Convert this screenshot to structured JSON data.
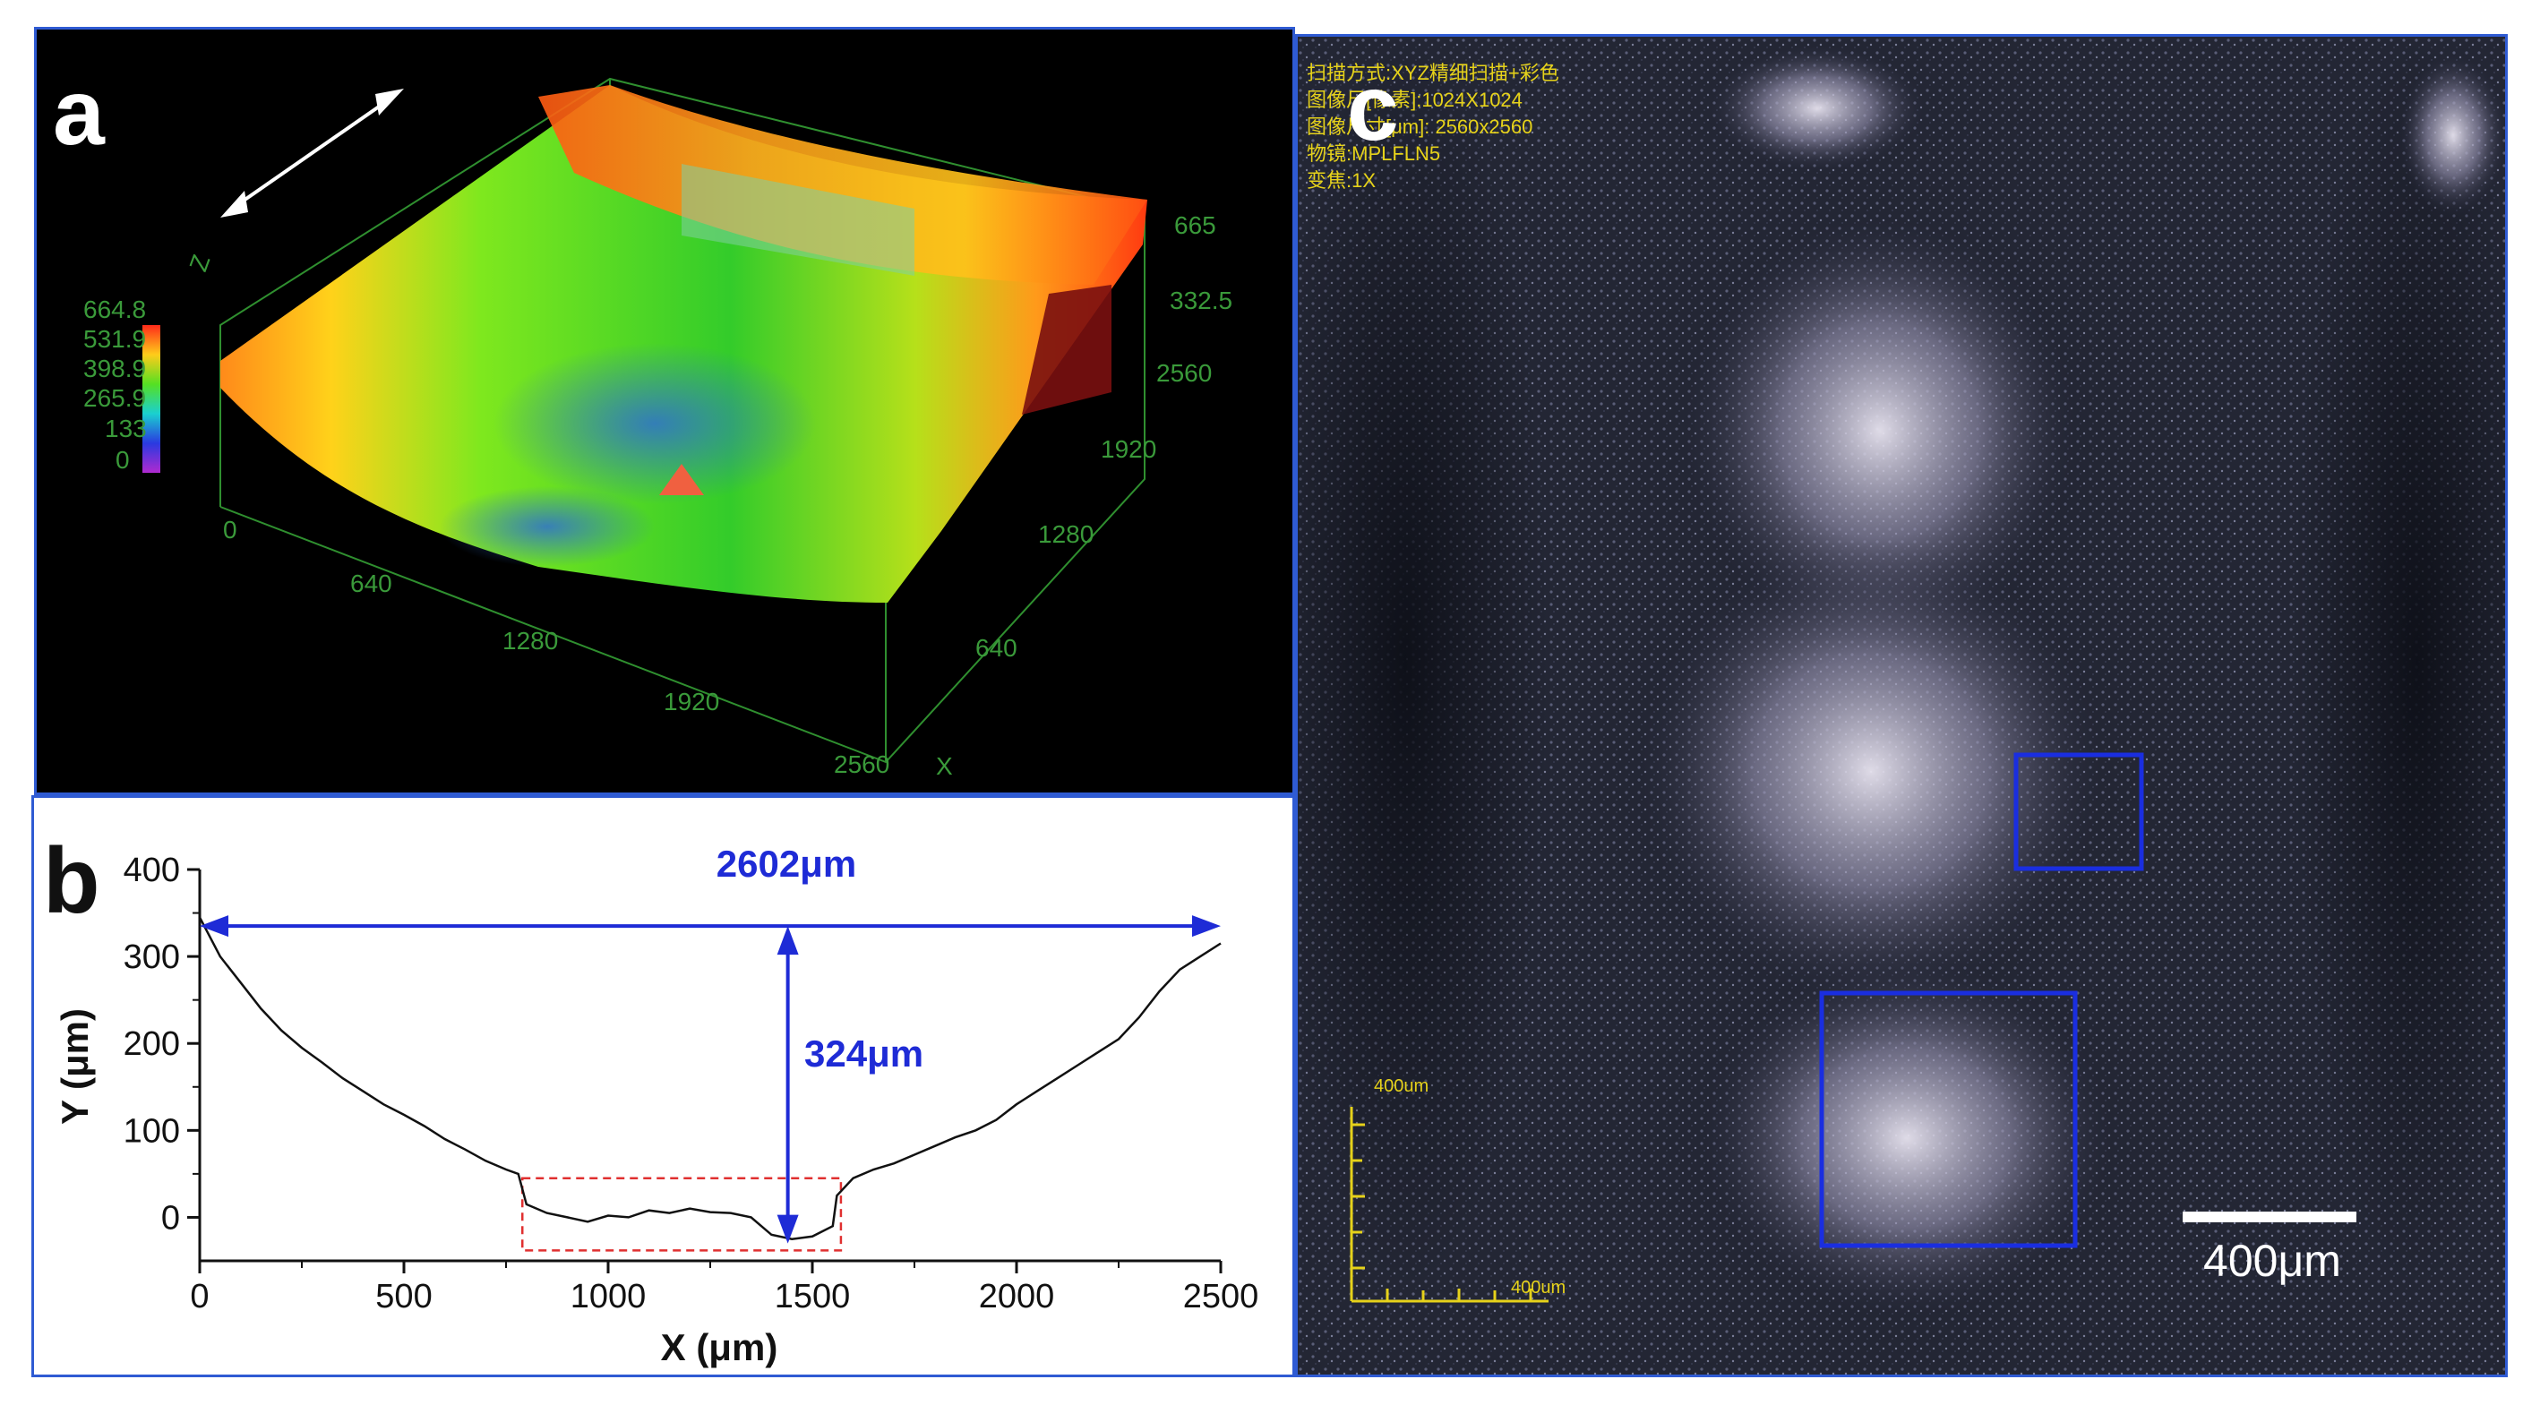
{
  "panel_a": {
    "label": "a",
    "colorbar_ticks": [
      "664.8",
      "531.9",
      "398.9",
      "265.9",
      "133",
      "0"
    ],
    "x_ticks": [
      "640",
      "1280",
      "1920",
      "2560"
    ],
    "x_origin": "0",
    "y_ticks": [
      "640",
      "1280",
      "1920",
      "2560"
    ],
    "z_ticks": [
      "332.5",
      "665"
    ],
    "axis_x": "X",
    "axis_z": "Z",
    "colors": {
      "frame": "#2f8f2f",
      "tick_text": "#3a9a3a"
    }
  },
  "panel_b": {
    "label": "b",
    "width_annotation": "2602μm",
    "depth_annotation": "324μm",
    "colors": {
      "annotation": "#1e2bd6",
      "box": "#e03030",
      "line": "#111111"
    }
  },
  "panel_c": {
    "label": "c",
    "info_lines": [
      "扫描方式:XYZ精细扫描+彩色",
      "图像尺[像素]:1024X1024",
      "图像尺寸[μm]: 2560x2560",
      "物镜:MPLFLN5",
      "变焦:1X"
    ],
    "ruler_label_v": "400um",
    "ruler_label_h": "400um",
    "scale_bar_label": "400μm",
    "colors": {
      "info": "#e6d21a",
      "roi": "#1a2ee0"
    }
  },
  "chart_data": {
    "type": "line",
    "title": "",
    "xlabel": "X (μm)",
    "ylabel": "Y (μm)",
    "xlim": [
      0,
      2500
    ],
    "ylim": [
      -50,
      400
    ],
    "x_ticks": [
      0,
      500,
      1000,
      1500,
      2000,
      2500
    ],
    "y_ticks": [
      0,
      100,
      200,
      300,
      400
    ],
    "grid": false,
    "series": [
      {
        "x": [
          0,
          50,
          100,
          150,
          200,
          250,
          300,
          350,
          400,
          450,
          500,
          550,
          600,
          650,
          700,
          750,
          780,
          800,
          850,
          900,
          950,
          1000,
          1050,
          1100,
          1150,
          1200,
          1250,
          1300,
          1350,
          1400,
          1450,
          1500,
          1550,
          1560,
          1600,
          1650,
          1700,
          1750,
          1800,
          1850,
          1900,
          1950,
          2000,
          2050,
          2100,
          2150,
          2200,
          2250,
          2300,
          2350,
          2400,
          2450,
          2500
        ],
        "y": [
          345,
          300,
          270,
          240,
          215,
          195,
          178,
          160,
          145,
          130,
          118,
          105,
          90,
          78,
          65,
          55,
          50,
          15,
          5,
          0,
          -5,
          2,
          0,
          8,
          5,
          10,
          6,
          5,
          0,
          -20,
          -25,
          -22,
          -10,
          25,
          45,
          55,
          62,
          72,
          82,
          92,
          100,
          112,
          130,
          145,
          160,
          175,
          190,
          205,
          230,
          260,
          285,
          300,
          315
        ]
      }
    ],
    "annotations": [
      {
        "text": "2602μm",
        "x_range": [
          0,
          2500
        ],
        "y": 335
      },
      {
        "text": "324μm",
        "x": 1440,
        "y_range": [
          -30,
          335
        ]
      }
    ],
    "highlight_box": {
      "x_range": [
        790,
        1570
      ],
      "y_range": [
        -38,
        45
      ]
    }
  }
}
